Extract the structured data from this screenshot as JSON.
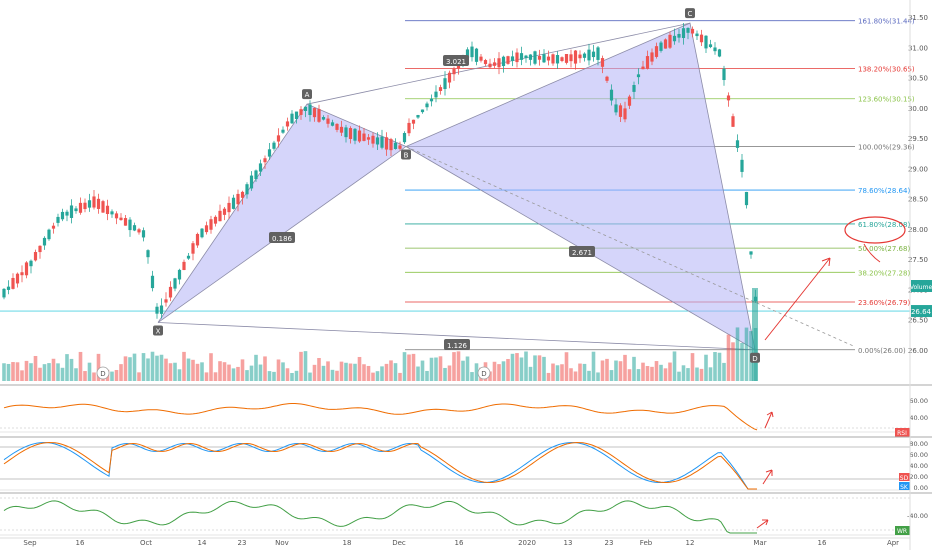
{
  "chart_data": {
    "type": "candlestick",
    "x_axis_labels": [
      "Sep",
      "16",
      "Oct",
      "14",
      "23",
      "Nov",
      "18",
      "Dec",
      "16",
      "2020",
      "13",
      "23",
      "Feb",
      "12",
      "Mar",
      "16",
      "Apr"
    ],
    "price_axis": {
      "ticks": [
        "31.50",
        "31.00",
        "30.50",
        "30.00",
        "29.50",
        "29.00",
        "28.50",
        "28.00",
        "27.50",
        "27.00",
        "26.50",
        "26.00"
      ],
      "range": [
        25.5,
        31.65
      ]
    },
    "last_price_label": "26.64",
    "volume_label": "Volume",
    "fib_levels": [
      {
        "label": "161.80%(31.44)",
        "value": 31.44,
        "color": "#5c6bc0"
      },
      {
        "label": "138.20%(30.65)",
        "value": 30.65,
        "color": "#e53935"
      },
      {
        "label": "123.60%(30.15)",
        "value": 30.15,
        "color": "#8bc34a"
      },
      {
        "label": "100.00%(29.36)",
        "value": 29.36,
        "color": "#757575"
      },
      {
        "label": "78.60%(28.64)",
        "value": 28.64,
        "color": "#2196f3"
      },
      {
        "label": "61.80%(28.08)",
        "value": 28.08,
        "color": "#26a69a"
      },
      {
        "label": "50.00%(27.68)",
        "value": 27.68,
        "color": "#7cb342"
      },
      {
        "label": "38.20%(27.28)",
        "value": 27.28,
        "color": "#8bc34a"
      },
      {
        "label": "23.60%(26.79)",
        "value": 26.79,
        "color": "#e53935"
      },
      {
        "label": "0.00%(26.00)",
        "value": 26.0,
        "color": "#757575"
      }
    ],
    "pattern_points": [
      {
        "label": "X",
        "date": "Oct 03",
        "value": 26.45
      },
      {
        "label": "A",
        "date": "Nov 04",
        "value": 30.06
      },
      {
        "label": "B",
        "date": "Dec 03",
        "value": 29.36
      },
      {
        "label": "C",
        "date": "Feb 12",
        "value": 31.4
      },
      {
        "label": "D",
        "date": "Feb 28",
        "value": 26.0
      }
    ],
    "ratio_labels": [
      "0.186",
      "3.021",
      "2.671",
      "1.126"
    ],
    "rsi_panel": {
      "ticks": [
        "60.00",
        "40.00"
      ],
      "tag": "RSI"
    },
    "stoch_panel": {
      "ticks": [
        "80.00",
        "60.00",
        "40.00",
        "20.00",
        "0.00"
      ],
      "tags": [
        "SD",
        "SK"
      ]
    },
    "wr_panel": {
      "ticks": [
        "-40.00"
      ],
      "tag": "WR"
    },
    "dividend_marks": [
      "D",
      "D"
    ],
    "colors": {
      "up": "#26a69a",
      "down": "#ef5350",
      "pattern_fill": "#b3b3f5",
      "pattern_stroke": "#8c8ca8"
    }
  }
}
